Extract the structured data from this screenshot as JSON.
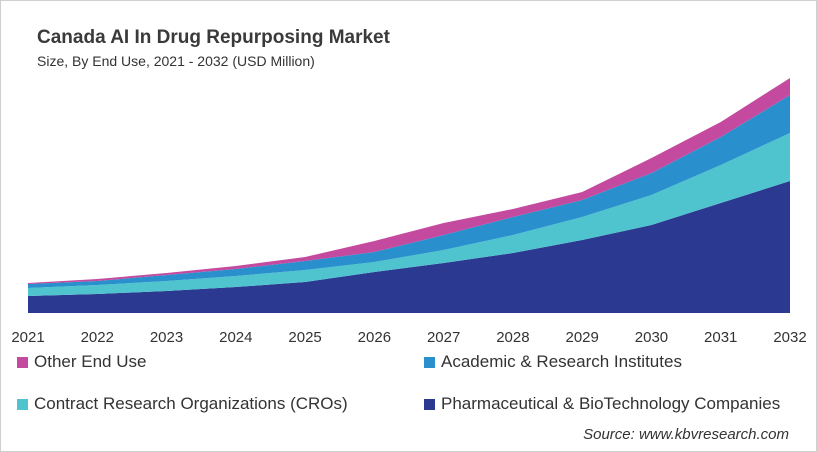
{
  "chart_data": {
    "type": "area",
    "stacked": true,
    "title": "Canada AI In Drug Repurposing Market",
    "subtitle": "Size, By End Use, 2021 - 2032 (USD Million)",
    "categories": [
      "2021",
      "2022",
      "2023",
      "2024",
      "2025",
      "2026",
      "2027",
      "2028",
      "2029",
      "2030",
      "2031",
      "2032"
    ],
    "series": [
      {
        "name": "Pharmaceutical & BioTechnology Companies",
        "color": "#2b3990",
        "values": [
          17,
          19,
          22,
          26,
          31,
          41,
          50,
          60,
          73,
          88,
          110,
          132
        ]
      },
      {
        "name": "Contract Research Organizations (CROs)",
        "color": "#4fc4cf",
        "values": [
          8,
          9,
          10,
          11,
          12,
          10,
          13,
          18,
          23,
          30,
          38,
          48
        ]
      },
      {
        "name": "Academic & Research Institutes",
        "color": "#2a8fcd",
        "values": [
          4,
          4,
          6,
          7,
          9,
          10,
          15,
          18,
          17,
          22,
          28,
          38
        ]
      },
      {
        "name": "Other End Use",
        "color": "#c44a9f",
        "values": [
          1,
          2,
          2,
          3,
          4,
          11,
          12,
          8,
          8,
          15,
          15,
          17
        ]
      }
    ],
    "ylim": [
      0,
      240
    ],
    "grid": false,
    "legend_placement": "bottom",
    "source": "Source: www.kbvresearch.com"
  }
}
